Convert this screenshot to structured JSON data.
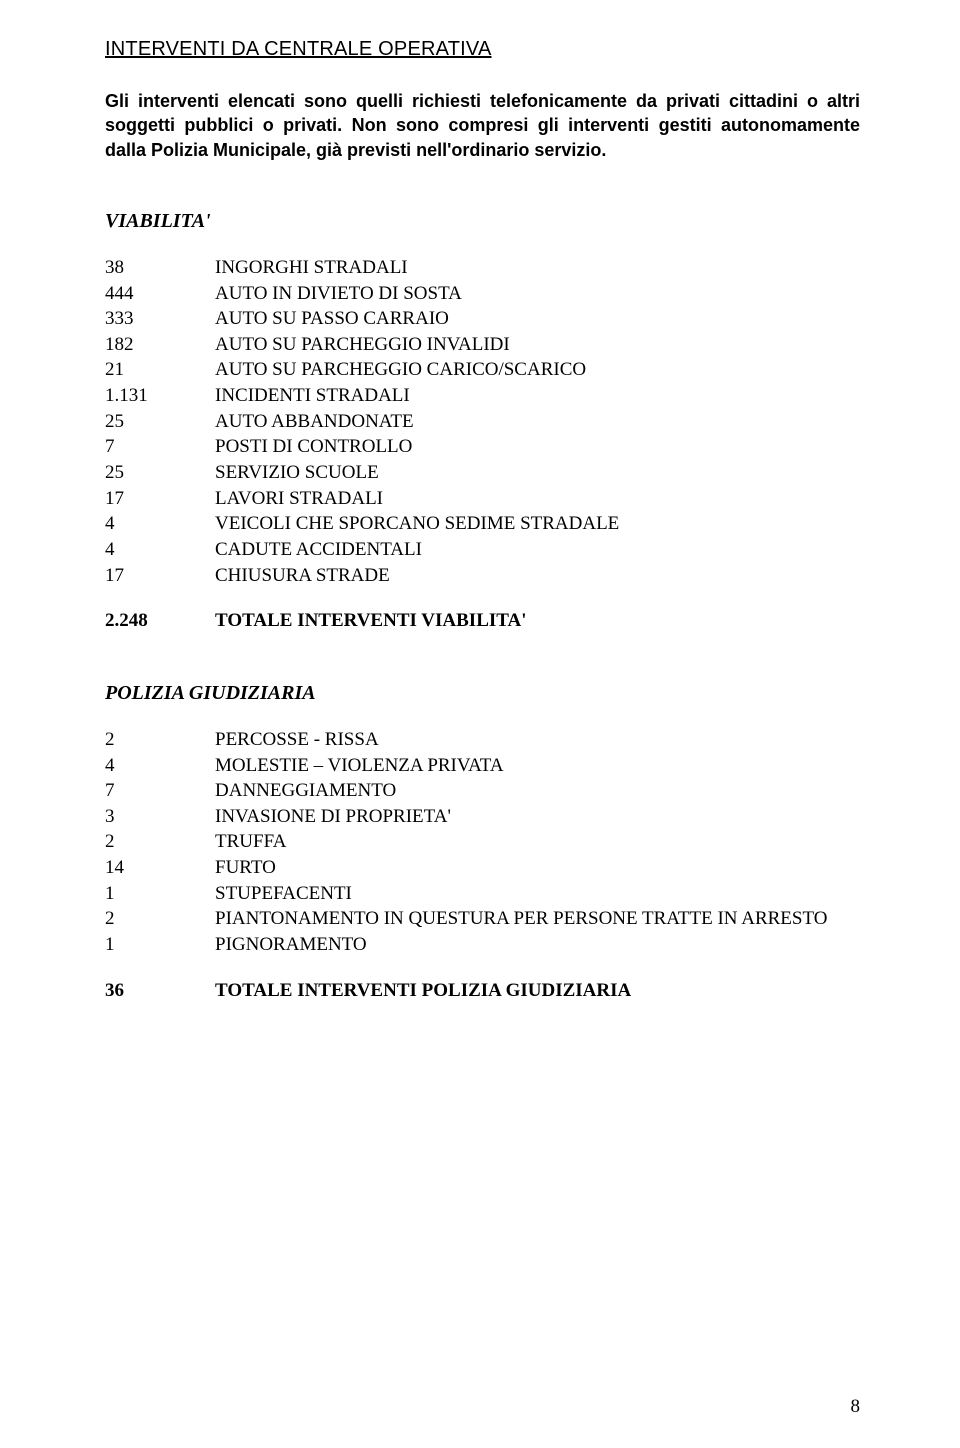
{
  "title": "INTERVENTI DA CENTRALE OPERATIVA",
  "intro": "Gli interventi elencati sono quelli richiesti telefonicamente da privati cittadini o altri soggetti pubblici o privati. Non sono compresi gli interventi gestiti autonomamente dalla Polizia Municipale, già previsti nell'ordinario servizio.",
  "sections": [
    {
      "heading": "VIABILITA'",
      "rows": [
        {
          "n": "38",
          "t": "INGORGHI STRADALI"
        },
        {
          "n": "444",
          "t": "AUTO IN DIVIETO DI SOSTA"
        },
        {
          "n": "333",
          "t": "AUTO SU PASSO CARRAIO"
        },
        {
          "n": "182",
          "t": "AUTO SU PARCHEGGIO INVALIDI"
        },
        {
          "n": "21",
          "t": "AUTO SU PARCHEGGIO CARICO/SCARICO"
        },
        {
          "n": "1.131",
          "t": "INCIDENTI STRADALI"
        },
        {
          "n": "25",
          "t": "AUTO ABBANDONATE"
        },
        {
          "n": "7",
          "t": "POSTI DI CONTROLLO"
        },
        {
          "n": "25",
          "t": "SERVIZIO SCUOLE"
        },
        {
          "n": "17",
          "t": "LAVORI STRADALI"
        },
        {
          "n": "4",
          "t": "VEICOLI CHE SPORCANO SEDIME STRADALE"
        },
        {
          "n": "4",
          "t": "CADUTE ACCIDENTALI"
        },
        {
          "n": "17",
          "t": "CHIUSURA STRADE"
        }
      ],
      "total": {
        "n": "2.248",
        "t": "TOTALE INTERVENTI VIABILITA'"
      }
    },
    {
      "heading": "POLIZIA GIUDIZIARIA",
      "rows": [
        {
          "n": "2",
          "t": "PERCOSSE - RISSA"
        },
        {
          "n": "4",
          "t": "MOLESTIE – VIOLENZA PRIVATA"
        },
        {
          "n": "7",
          "t": "DANNEGGIAMENTO"
        },
        {
          "n": "3",
          "t": "INVASIONE DI PROPRIETA'"
        },
        {
          "n": "2",
          "t": "TRUFFA"
        },
        {
          "n": "14",
          "t": "FURTO"
        },
        {
          "n": "1",
          "t": "STUPEFACENTI"
        },
        {
          "n": "2",
          "t": "PIANTONAMENTO IN QUESTURA PER PERSONE TRATTE IN ARRESTO"
        },
        {
          "n": "1",
          "t": "PIGNORAMENTO"
        }
      ],
      "total": {
        "n": "36",
        "t": "TOTALE INTERVENTI POLIZIA GIUDIZIARIA"
      }
    }
  ],
  "page_number": "8"
}
